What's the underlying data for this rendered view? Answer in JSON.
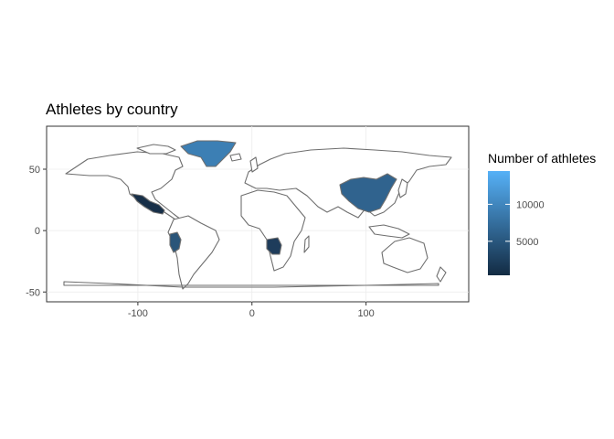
{
  "title": "Athletes by country",
  "legend": {
    "title": "Number of athletes",
    "ticks": [
      10000,
      5000
    ],
    "range": [
      400,
      14500
    ],
    "color_low": "#132B43",
    "color_high": "#56B1F7"
  },
  "chart_data": {
    "type": "choropleth",
    "title": "Athletes by country",
    "xlim": [
      -180,
      190
    ],
    "ylim": [
      -58,
      85
    ],
    "x_ticks": [
      -100,
      0,
      100
    ],
    "y_ticks": [
      50,
      0,
      -50
    ],
    "grid": true,
    "legend_position": "right",
    "colored_regions": [
      {
        "name": "Greenland",
        "value": 11000
      },
      {
        "name": "China",
        "value": 9000
      },
      {
        "name": "Mexico",
        "value": 1000
      },
      {
        "name": "Peru",
        "value": 7500
      },
      {
        "name": "Angola",
        "value": 2500
      }
    ]
  }
}
